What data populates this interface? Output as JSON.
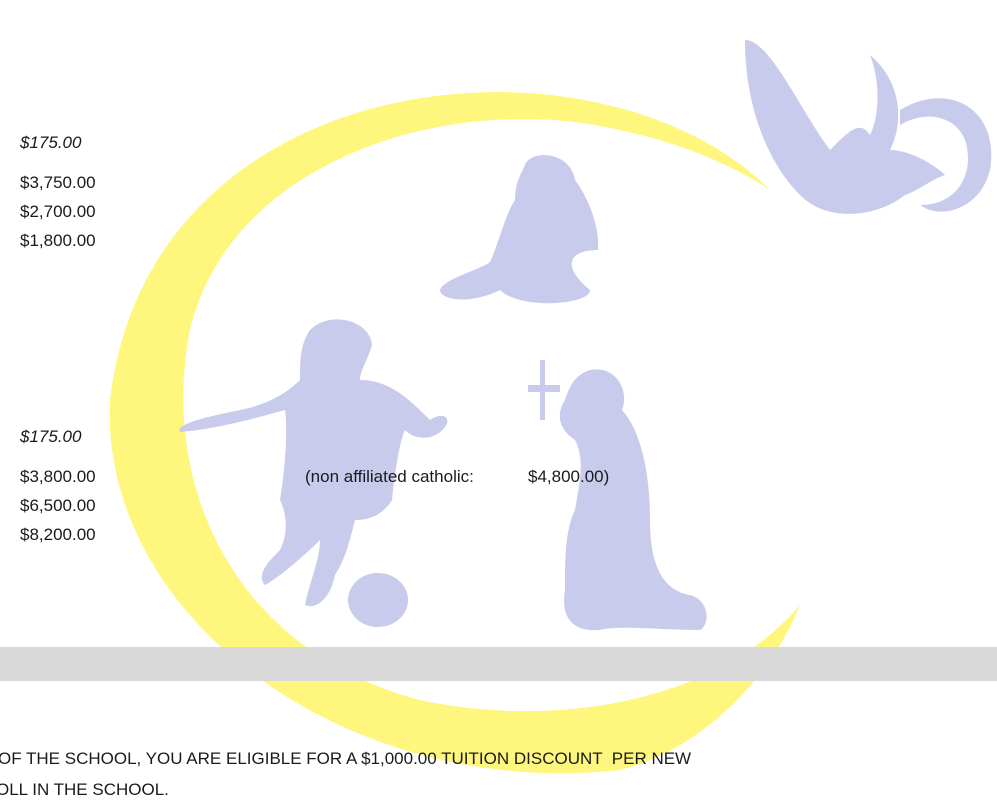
{
  "fees_section_1": {
    "registration_fee": "$175.00",
    "tuition": [
      "$3,750.00",
      "$2,700.00",
      "$1,800.00"
    ]
  },
  "fees_section_2": {
    "registration_fee": "$175.00",
    "tuition": [
      "$3,800.00",
      "$6,500.00",
      "$8,200.00"
    ],
    "note_label": "(non affiliated catholic:",
    "note_value": "$4,800.00)"
  },
  "discount_text": [
    "OF THE SCHOOL, YOU ARE ELIGIBLE FOR A $1,000.00 TUITION DISCOUNT  PER NEW",
    "OLL IN THE SCHOOL."
  ]
}
